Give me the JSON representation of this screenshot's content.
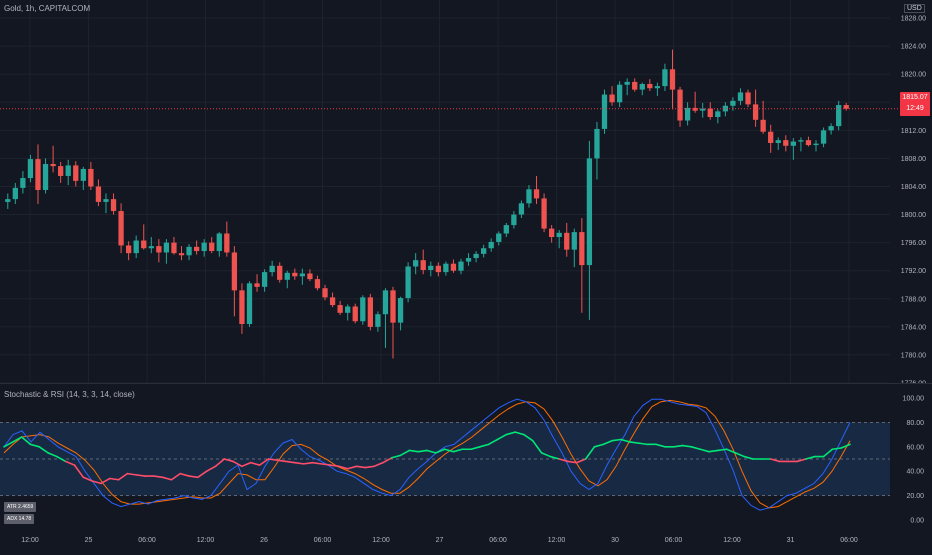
{
  "header": {
    "title": "Gold, 1h, CAPITALCOM",
    "currency": "USD"
  },
  "price_axis": {
    "labels": [
      "1828.00",
      "1824.00",
      "1820.00",
      "1816.00",
      "1812.00",
      "1808.00",
      "1804.00",
      "1800.00",
      "1796.00",
      "1792.00",
      "1788.00",
      "1784.00",
      "1780.00",
      "1776.00"
    ]
  },
  "last_price": {
    "value": "1815.07",
    "countdown": "12:49"
  },
  "oscillator": {
    "title": "Stochastic & RSI (14, 3, 3, 14, close)",
    "axis_labels": [
      "100.00",
      "80.00",
      "60.00",
      "40.00",
      "20.00",
      "0.00"
    ],
    "atr_label": "ATR 2.4659",
    "adx_label": "ADX 14.78"
  },
  "time_axis": {
    "labels": [
      "12:00",
      "25",
      "06:00",
      "12:00",
      "26",
      "06:00",
      "12:00",
      "27",
      "06:00",
      "12:00",
      "30",
      "06:00",
      "12:00",
      "31",
      "06:00"
    ]
  },
  "colors": {
    "up": "#26a69a",
    "down": "#ef5350",
    "stoch_k": "#2962ff",
    "stoch_d": "#ff6d00",
    "rsi_up": "#00e676",
    "rsi_down": "#ff4d6a",
    "band": "#1e3a5f"
  },
  "chart_data": {
    "type": "candlestick",
    "ylim": [
      1776,
      1830
    ],
    "ohlc": [
      [
        1801.8,
        1803.0,
        1800.8,
        1802.2
      ],
      [
        1802.2,
        1804.5,
        1801.5,
        1803.8
      ],
      [
        1803.8,
        1806.2,
        1803.0,
        1805.2
      ],
      [
        1805.2,
        1808.5,
        1804.6,
        1807.9
      ],
      [
        1807.9,
        1810.0,
        1801.5,
        1803.5
      ],
      [
        1803.5,
        1808.0,
        1803.0,
        1807.2
      ],
      [
        1807.2,
        1809.8,
        1806.0,
        1806.9
      ],
      [
        1806.9,
        1807.5,
        1804.5,
        1805.5
      ],
      [
        1805.5,
        1807.8,
        1804.2,
        1807.0
      ],
      [
        1807.0,
        1807.6,
        1804.0,
        1804.8
      ],
      [
        1804.8,
        1806.8,
        1803.5,
        1806.5
      ],
      [
        1806.5,
        1807.5,
        1803.5,
        1804.0
      ],
      [
        1804.0,
        1805.0,
        1801.2,
        1801.8
      ],
      [
        1801.8,
        1803.0,
        1800.2,
        1802.2
      ],
      [
        1802.2,
        1803.0,
        1800.0,
        1800.5
      ],
      [
        1800.5,
        1801.6,
        1794.5,
        1795.6
      ],
      [
        1795.6,
        1796.2,
        1793.5,
        1794.5
      ],
      [
        1794.5,
        1797.0,
        1793.8,
        1796.3
      ],
      [
        1796.3,
        1798.6,
        1795.0,
        1795.2
      ],
      [
        1795.2,
        1796.8,
        1794.5,
        1795.5
      ],
      [
        1795.5,
        1796.5,
        1793.2,
        1794.6
      ],
      [
        1794.6,
        1796.5,
        1793.0,
        1796.0
      ],
      [
        1796.0,
        1796.8,
        1794.3,
        1794.5
      ],
      [
        1794.5,
        1795.5,
        1793.5,
        1794.2
      ],
      [
        1794.2,
        1795.8,
        1793.5,
        1795.4
      ],
      [
        1795.4,
        1796.3,
        1794.3,
        1794.8
      ],
      [
        1794.8,
        1796.5,
        1794.0,
        1796.0
      ],
      [
        1796.0,
        1796.8,
        1794.5,
        1794.8
      ],
      [
        1794.8,
        1797.5,
        1794.0,
        1797.3
      ],
      [
        1797.3,
        1799.0,
        1794.0,
        1794.6
      ],
      [
        1794.6,
        1795.5,
        1785.5,
        1789.2
      ],
      [
        1789.2,
        1790.2,
        1783.0,
        1784.4
      ],
      [
        1784.4,
        1790.5,
        1784.0,
        1790.2
      ],
      [
        1790.2,
        1791.5,
        1789.0,
        1789.7
      ],
      [
        1789.7,
        1792.2,
        1789.0,
        1791.8
      ],
      [
        1791.8,
        1793.4,
        1791.2,
        1792.7
      ],
      [
        1792.7,
        1793.2,
        1790.3,
        1790.7
      ],
      [
        1790.7,
        1792.0,
        1789.5,
        1791.7
      ],
      [
        1791.7,
        1792.3,
        1790.7,
        1791.2
      ],
      [
        1791.2,
        1792.3,
        1790.0,
        1791.6
      ],
      [
        1791.6,
        1792.2,
        1790.5,
        1790.8
      ],
      [
        1790.8,
        1791.3,
        1789.2,
        1789.5
      ],
      [
        1789.5,
        1790.0,
        1787.8,
        1788.2
      ],
      [
        1788.2,
        1788.9,
        1786.8,
        1787.1
      ],
      [
        1787.1,
        1787.7,
        1785.7,
        1786.0
      ],
      [
        1786.0,
        1787.2,
        1784.9,
        1786.9
      ],
      [
        1786.9,
        1787.3,
        1784.5,
        1784.8
      ],
      [
        1784.8,
        1788.5,
        1784.3,
        1788.2
      ],
      [
        1788.2,
        1788.7,
        1783.5,
        1784.0
      ],
      [
        1784.0,
        1786.2,
        1783.3,
        1785.8
      ],
      [
        1785.8,
        1789.5,
        1781.0,
        1789.2
      ],
      [
        1789.2,
        1789.7,
        1779.5,
        1784.6
      ],
      [
        1784.6,
        1788.3,
        1783.5,
        1788.1
      ],
      [
        1788.1,
        1793.2,
        1787.5,
        1792.6
      ],
      [
        1792.6,
        1794.5,
        1791.5,
        1793.5
      ],
      [
        1793.5,
        1795.0,
        1791.5,
        1792.1
      ],
      [
        1792.1,
        1793.3,
        1791.2,
        1792.7
      ],
      [
        1792.7,
        1793.2,
        1791.2,
        1791.8
      ],
      [
        1791.8,
        1793.3,
        1791.3,
        1793.0
      ],
      [
        1793.0,
        1793.6,
        1791.7,
        1792.0
      ],
      [
        1792.0,
        1793.7,
        1791.5,
        1793.3
      ],
      [
        1793.3,
        1794.5,
        1792.7,
        1793.8
      ],
      [
        1793.8,
        1794.8,
        1793.2,
        1794.4
      ],
      [
        1794.4,
        1795.7,
        1793.9,
        1795.2
      ],
      [
        1795.2,
        1796.6,
        1794.7,
        1796.1
      ],
      [
        1796.1,
        1797.6,
        1795.6,
        1797.3
      ],
      [
        1797.3,
        1798.8,
        1796.8,
        1798.5
      ],
      [
        1798.5,
        1800.5,
        1798.0,
        1800.0
      ],
      [
        1800.0,
        1802.0,
        1799.5,
        1801.6
      ],
      [
        1801.6,
        1804.2,
        1801.0,
        1803.6
      ],
      [
        1803.6,
        1805.5,
        1801.5,
        1802.3
      ],
      [
        1802.3,
        1803.0,
        1797.5,
        1798.0
      ],
      [
        1798.0,
        1798.5,
        1796.0,
        1796.8
      ],
      [
        1796.8,
        1797.8,
        1795.2,
        1797.4
      ],
      [
        1797.4,
        1798.8,
        1794.0,
        1795.0
      ],
      [
        1795.0,
        1798.0,
        1792.5,
        1797.5
      ],
      [
        1797.5,
        1799.5,
        1786.0,
        1792.8
      ],
      [
        1792.8,
        1810.5,
        1785.0,
        1808.0
      ],
      [
        1808.0,
        1813.2,
        1805.0,
        1812.2
      ],
      [
        1812.2,
        1817.8,
        1811.5,
        1817.1
      ],
      [
        1817.1,
        1818.3,
        1815.5,
        1816.0
      ],
      [
        1816.0,
        1819.0,
        1815.3,
        1818.5
      ],
      [
        1818.5,
        1819.4,
        1817.0,
        1818.9
      ],
      [
        1818.9,
        1819.4,
        1817.5,
        1817.8
      ],
      [
        1817.8,
        1818.8,
        1817.0,
        1818.6
      ],
      [
        1818.6,
        1819.3,
        1817.6,
        1818.0
      ],
      [
        1818.0,
        1818.8,
        1816.9,
        1818.3
      ],
      [
        1818.3,
        1821.5,
        1817.6,
        1820.7
      ],
      [
        1820.7,
        1823.5,
        1815.0,
        1817.8
      ],
      [
        1817.8,
        1818.2,
        1812.5,
        1813.4
      ],
      [
        1813.4,
        1816.0,
        1812.7,
        1815.2
      ],
      [
        1815.2,
        1817.5,
        1814.5,
        1814.8
      ],
      [
        1814.8,
        1815.9,
        1813.8,
        1815.1
      ],
      [
        1815.1,
        1816.0,
        1813.5,
        1813.9
      ],
      [
        1813.9,
        1815.0,
        1813.0,
        1814.7
      ],
      [
        1814.7,
        1816.0,
        1814.0,
        1815.5
      ],
      [
        1815.5,
        1816.7,
        1814.8,
        1816.2
      ],
      [
        1816.2,
        1818.0,
        1815.6,
        1817.4
      ],
      [
        1817.4,
        1817.8,
        1815.3,
        1815.7
      ],
      [
        1815.7,
        1817.8,
        1812.5,
        1813.5
      ],
      [
        1813.5,
        1816.2,
        1811.5,
        1811.8
      ],
      [
        1811.8,
        1812.8,
        1808.8,
        1810.2
      ],
      [
        1810.2,
        1811.0,
        1809.2,
        1810.6
      ],
      [
        1810.6,
        1811.3,
        1809.0,
        1809.8
      ],
      [
        1809.8,
        1810.9,
        1807.8,
        1810.4
      ],
      [
        1810.4,
        1811.0,
        1809.0,
        1810.6
      ],
      [
        1810.6,
        1811.1,
        1809.7,
        1809.9
      ],
      [
        1809.9,
        1810.6,
        1809.0,
        1810.1
      ],
      [
        1810.1,
        1812.4,
        1809.6,
        1812.0
      ],
      [
        1812.0,
        1813.0,
        1811.4,
        1812.6
      ],
      [
        1812.6,
        1816.2,
        1812.0,
        1815.6
      ],
      [
        1815.6,
        1815.9,
        1814.8,
        1815.07
      ]
    ],
    "stochastic_k": [
      60,
      70,
      73,
      64,
      72,
      66,
      60,
      56,
      52,
      40,
      30,
      20,
      14,
      11,
      13,
      15,
      13,
      16,
      17,
      18,
      20,
      18,
      17,
      20,
      30,
      40,
      45,
      25,
      30,
      44,
      55,
      63,
      66,
      58,
      52,
      49,
      45,
      40,
      38,
      35,
      30,
      25,
      22,
      20,
      25,
      35,
      42,
      48,
      55,
      60,
      62,
      68,
      74,
      80,
      86,
      92,
      96,
      99,
      97,
      92,
      82,
      68,
      55,
      40,
      30,
      25,
      30,
      45,
      58,
      70,
      85,
      94,
      99,
      99,
      97,
      95,
      94,
      93,
      88,
      74,
      58,
      41,
      20,
      12,
      8,
      10,
      15,
      20,
      22,
      26,
      30,
      38,
      50,
      65,
      80
    ],
    "stochastic_d": [
      55,
      62,
      68,
      69,
      70,
      68,
      63,
      59,
      55,
      49,
      41,
      30,
      21,
      15,
      13,
      13,
      14,
      15,
      16,
      17,
      18,
      19,
      18,
      18,
      22,
      30,
      38,
      37,
      33,
      33,
      43,
      54,
      61,
      62,
      59,
      53,
      49,
      44,
      41,
      38,
      34,
      29,
      25,
      22,
      22,
      27,
      34,
      42,
      48,
      54,
      59,
      63,
      68,
      74,
      80,
      86,
      91,
      95,
      97,
      96,
      91,
      81,
      68,
      54,
      42,
      32,
      28,
      33,
      44,
      58,
      71,
      83,
      93,
      97,
      98,
      97,
      95,
      94,
      92,
      85,
      73,
      58,
      40,
      24,
      14,
      10,
      11,
      15,
      19,
      23,
      26,
      31,
      40,
      52,
      65
    ],
    "rsi": [
      60,
      64,
      68,
      62,
      60,
      55,
      52,
      48,
      45,
      35,
      32,
      30,
      34,
      33,
      38,
      37,
      36,
      36,
      35,
      33,
      38,
      36,
      35,
      40,
      44,
      50,
      48,
      44,
      47,
      45,
      50,
      49,
      48,
      47,
      46,
      47,
      46,
      45,
      44,
      42,
      44,
      43,
      44,
      47,
      51,
      53,
      57,
      56,
      57,
      55,
      58,
      56,
      58,
      58,
      60,
      62,
      66,
      70,
      72,
      70,
      65,
      55,
      52,
      50,
      48,
      47,
      50,
      60,
      62,
      65,
      66,
      64,
      63,
      62,
      62,
      60,
      60,
      61,
      60,
      58,
      56,
      57,
      58,
      55,
      52,
      50,
      50,
      50,
      48,
      48,
      48,
      50,
      52,
      52,
      58,
      59,
      62
    ]
  }
}
